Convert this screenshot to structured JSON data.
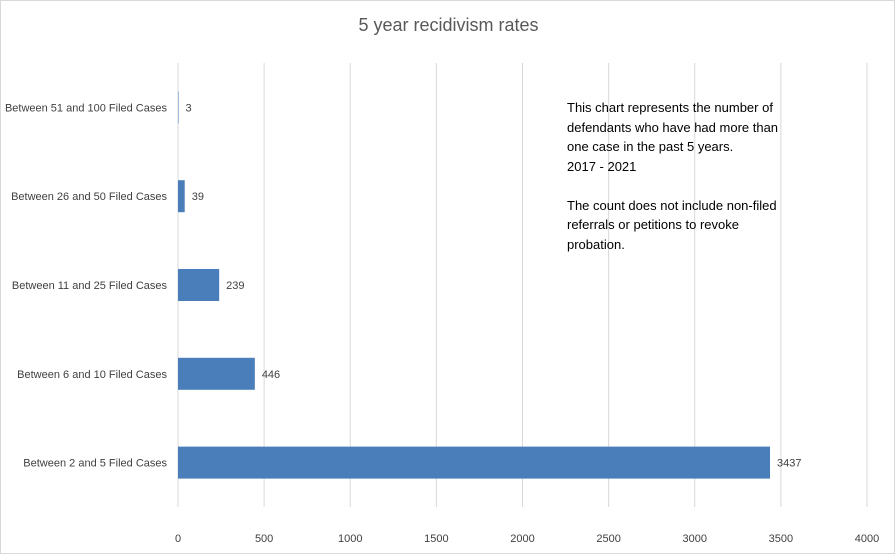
{
  "chart_data": {
    "type": "bar",
    "orientation": "horizontal",
    "title": "5 year recidivism rates",
    "categories": [
      "Between 51 and 100 Filed Cases",
      "Between 26 and 50 Filed Cases",
      "Between 11 and 25 Filed Cases",
      "Between 6 and 10 Filed Cases",
      "Between 2 and 5 Filed Cases"
    ],
    "values": [
      3,
      39,
      239,
      446,
      3437
    ],
    "data_labels": [
      "3",
      "39",
      "239",
      "446",
      "3437"
    ],
    "xlim": [
      0,
      4000
    ],
    "xticks": [
      "0",
      "500",
      "1000",
      "1500",
      "2000",
      "2500",
      "3000",
      "3500",
      "4000"
    ],
    "xlabel": "",
    "ylabel": "",
    "grid": "vertical",
    "legend": "none",
    "bar_color": "#4a7ebb",
    "annotation": {
      "lines": [
        "This chart represents the number of",
        "defendants who have had more than",
        "one case in the past 5 years.",
        "2017 - 2021",
        "",
        "The count does not include non-filed",
        "referrals or petitions to revoke",
        "probation."
      ]
    }
  }
}
